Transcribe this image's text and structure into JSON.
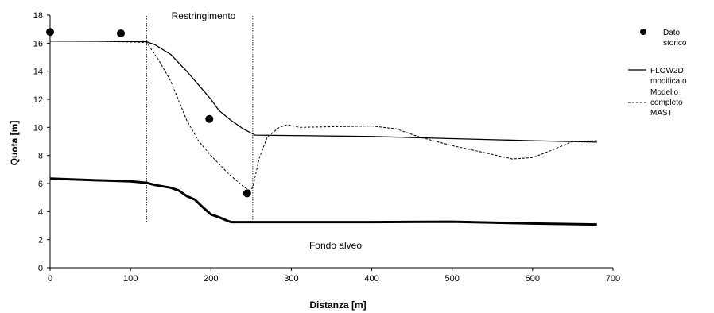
{
  "chart_data": {
    "type": "line",
    "xlabel": "Distanza [m]",
    "ylabel": "Quota [m]",
    "xlim": [
      0,
      700
    ],
    "ylim": [
      0,
      18
    ],
    "x_ticks": [
      "0",
      "100",
      "200",
      "300",
      "400",
      "500",
      "600",
      "700"
    ],
    "y_ticks": [
      "0",
      "2",
      "4",
      "6",
      "8",
      "10",
      "12",
      "14",
      "16",
      "18"
    ],
    "grid": false,
    "legend_position": "right",
    "annotations": {
      "restriction_label": "Restringimento",
      "bed_label": "Fondo alveo",
      "restriction_lines_x": [
        120,
        252
      ]
    },
    "series": [
      {
        "name": "Dato storico",
        "style": "marker",
        "color": "#000000",
        "points": [
          [
            0,
            16.8
          ],
          [
            88,
            16.7
          ],
          [
            198,
            10.6
          ],
          [
            245,
            5.3
          ]
        ]
      },
      {
        "name": "FLOW2D modificato",
        "style": "solid",
        "color": "#000000",
        "points": [
          [
            0,
            16.15
          ],
          [
            60,
            16.13
          ],
          [
            120,
            16.1
          ],
          [
            130,
            15.9
          ],
          [
            150,
            15.2
          ],
          [
            170,
            14.0
          ],
          [
            185,
            13.0
          ],
          [
            200,
            12.0
          ],
          [
            210,
            11.2
          ],
          [
            225,
            10.5
          ],
          [
            240,
            9.9
          ],
          [
            255,
            9.45
          ],
          [
            300,
            9.42
          ],
          [
            400,
            9.35
          ],
          [
            500,
            9.2
          ],
          [
            600,
            9.05
          ],
          [
            680,
            8.95
          ]
        ]
      },
      {
        "name": "Modello completo MAST",
        "style": "dashed",
        "color": "#000000",
        "points": [
          [
            0,
            16.15
          ],
          [
            60,
            16.13
          ],
          [
            120,
            16.05
          ],
          [
            135,
            14.8
          ],
          [
            150,
            13.3
          ],
          [
            170,
            10.5
          ],
          [
            185,
            9.0
          ],
          [
            200,
            8.0
          ],
          [
            220,
            6.8
          ],
          [
            240,
            5.8
          ],
          [
            248,
            5.5
          ],
          [
            252,
            5.7
          ],
          [
            260,
            7.8
          ],
          [
            270,
            9.3
          ],
          [
            285,
            10.0
          ],
          [
            295,
            10.2
          ],
          [
            310,
            10.0
          ],
          [
            400,
            10.1
          ],
          [
            430,
            9.9
          ],
          [
            460,
            9.3
          ],
          [
            500,
            8.7
          ],
          [
            540,
            8.2
          ],
          [
            575,
            7.75
          ],
          [
            600,
            7.85
          ],
          [
            625,
            8.4
          ],
          [
            650,
            9.0
          ],
          [
            680,
            9.05
          ]
        ]
      },
      {
        "name": "",
        "style": "thick",
        "color": "#000000",
        "points": [
          [
            0,
            6.35
          ],
          [
            50,
            6.25
          ],
          [
            100,
            6.15
          ],
          [
            120,
            6.05
          ],
          [
            130,
            5.9
          ],
          [
            150,
            5.7
          ],
          [
            160,
            5.5
          ],
          [
            170,
            5.1
          ],
          [
            180,
            4.85
          ],
          [
            190,
            4.3
          ],
          [
            200,
            3.8
          ],
          [
            210,
            3.6
          ],
          [
            220,
            3.35
          ],
          [
            225,
            3.25
          ],
          [
            300,
            3.25
          ],
          [
            400,
            3.25
          ],
          [
            500,
            3.28
          ],
          [
            600,
            3.15
          ],
          [
            680,
            3.08
          ]
        ]
      }
    ]
  }
}
